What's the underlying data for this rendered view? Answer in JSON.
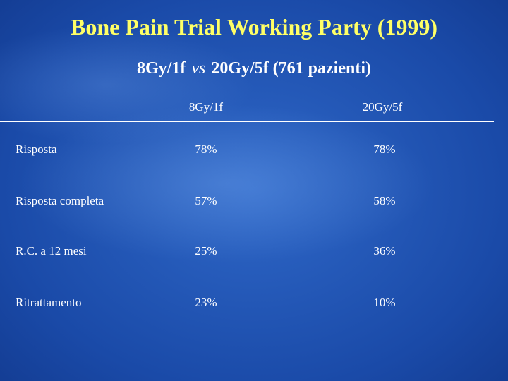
{
  "header": {
    "title": "Bone Pain Trial Working Party (1999)",
    "subtitle": [
      "8Gy/1f",
      "vs",
      "20Gy/5f (761 pazienti)"
    ]
  },
  "table": {
    "columns": [
      "8Gy/1f",
      "20Gy/5f"
    ],
    "rows": [
      [
        "Risposta",
        "78%",
        "78%"
      ],
      [
        "Risposta completa",
        "57%",
        "58%"
      ],
      [
        "R.C. a 12 mesi",
        "25%",
        "36%"
      ],
      [
        "Ritrattamento",
        "23%",
        "10%"
      ]
    ]
  }
}
